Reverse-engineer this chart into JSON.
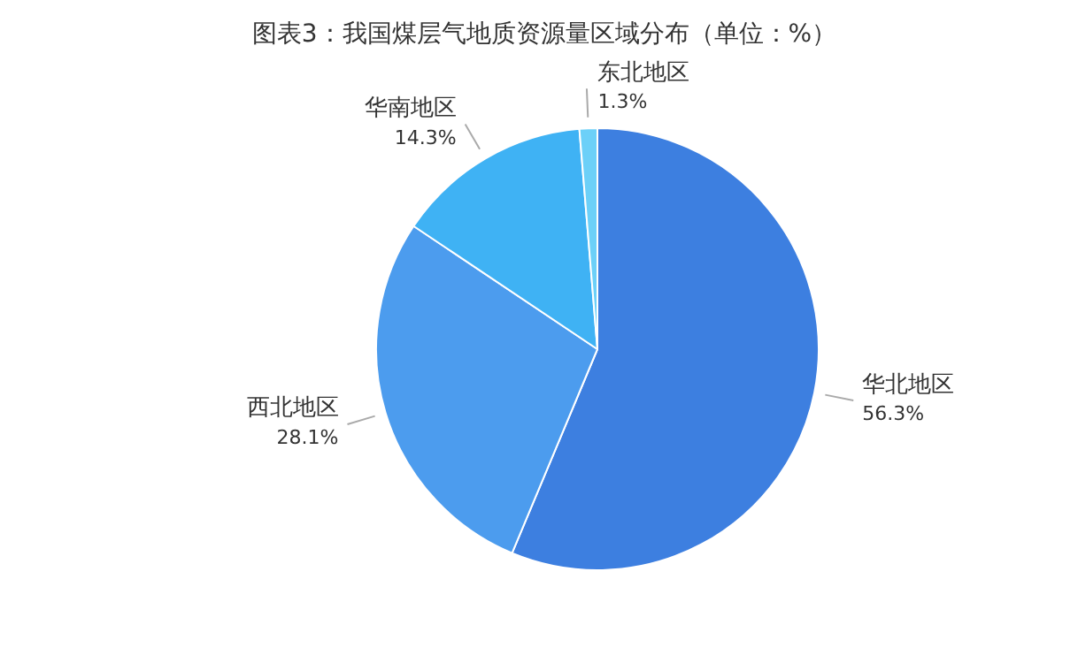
{
  "chart_data": {
    "type": "pie",
    "title": "图表3：我国煤层气地质资源量区域分布（单位：%）",
    "categories": [
      "华北地区",
      "西北地区",
      "华南地区",
      "东北地区"
    ],
    "values": [
      56.3,
      28.1,
      14.3,
      1.3
    ],
    "colors": [
      "#3d7fe0",
      "#4c9cee",
      "#3fb2f4",
      "#6cd0f8"
    ],
    "value_labels": [
      "56.3%",
      "28.1%",
      "14.3%",
      "1.3%"
    ]
  }
}
